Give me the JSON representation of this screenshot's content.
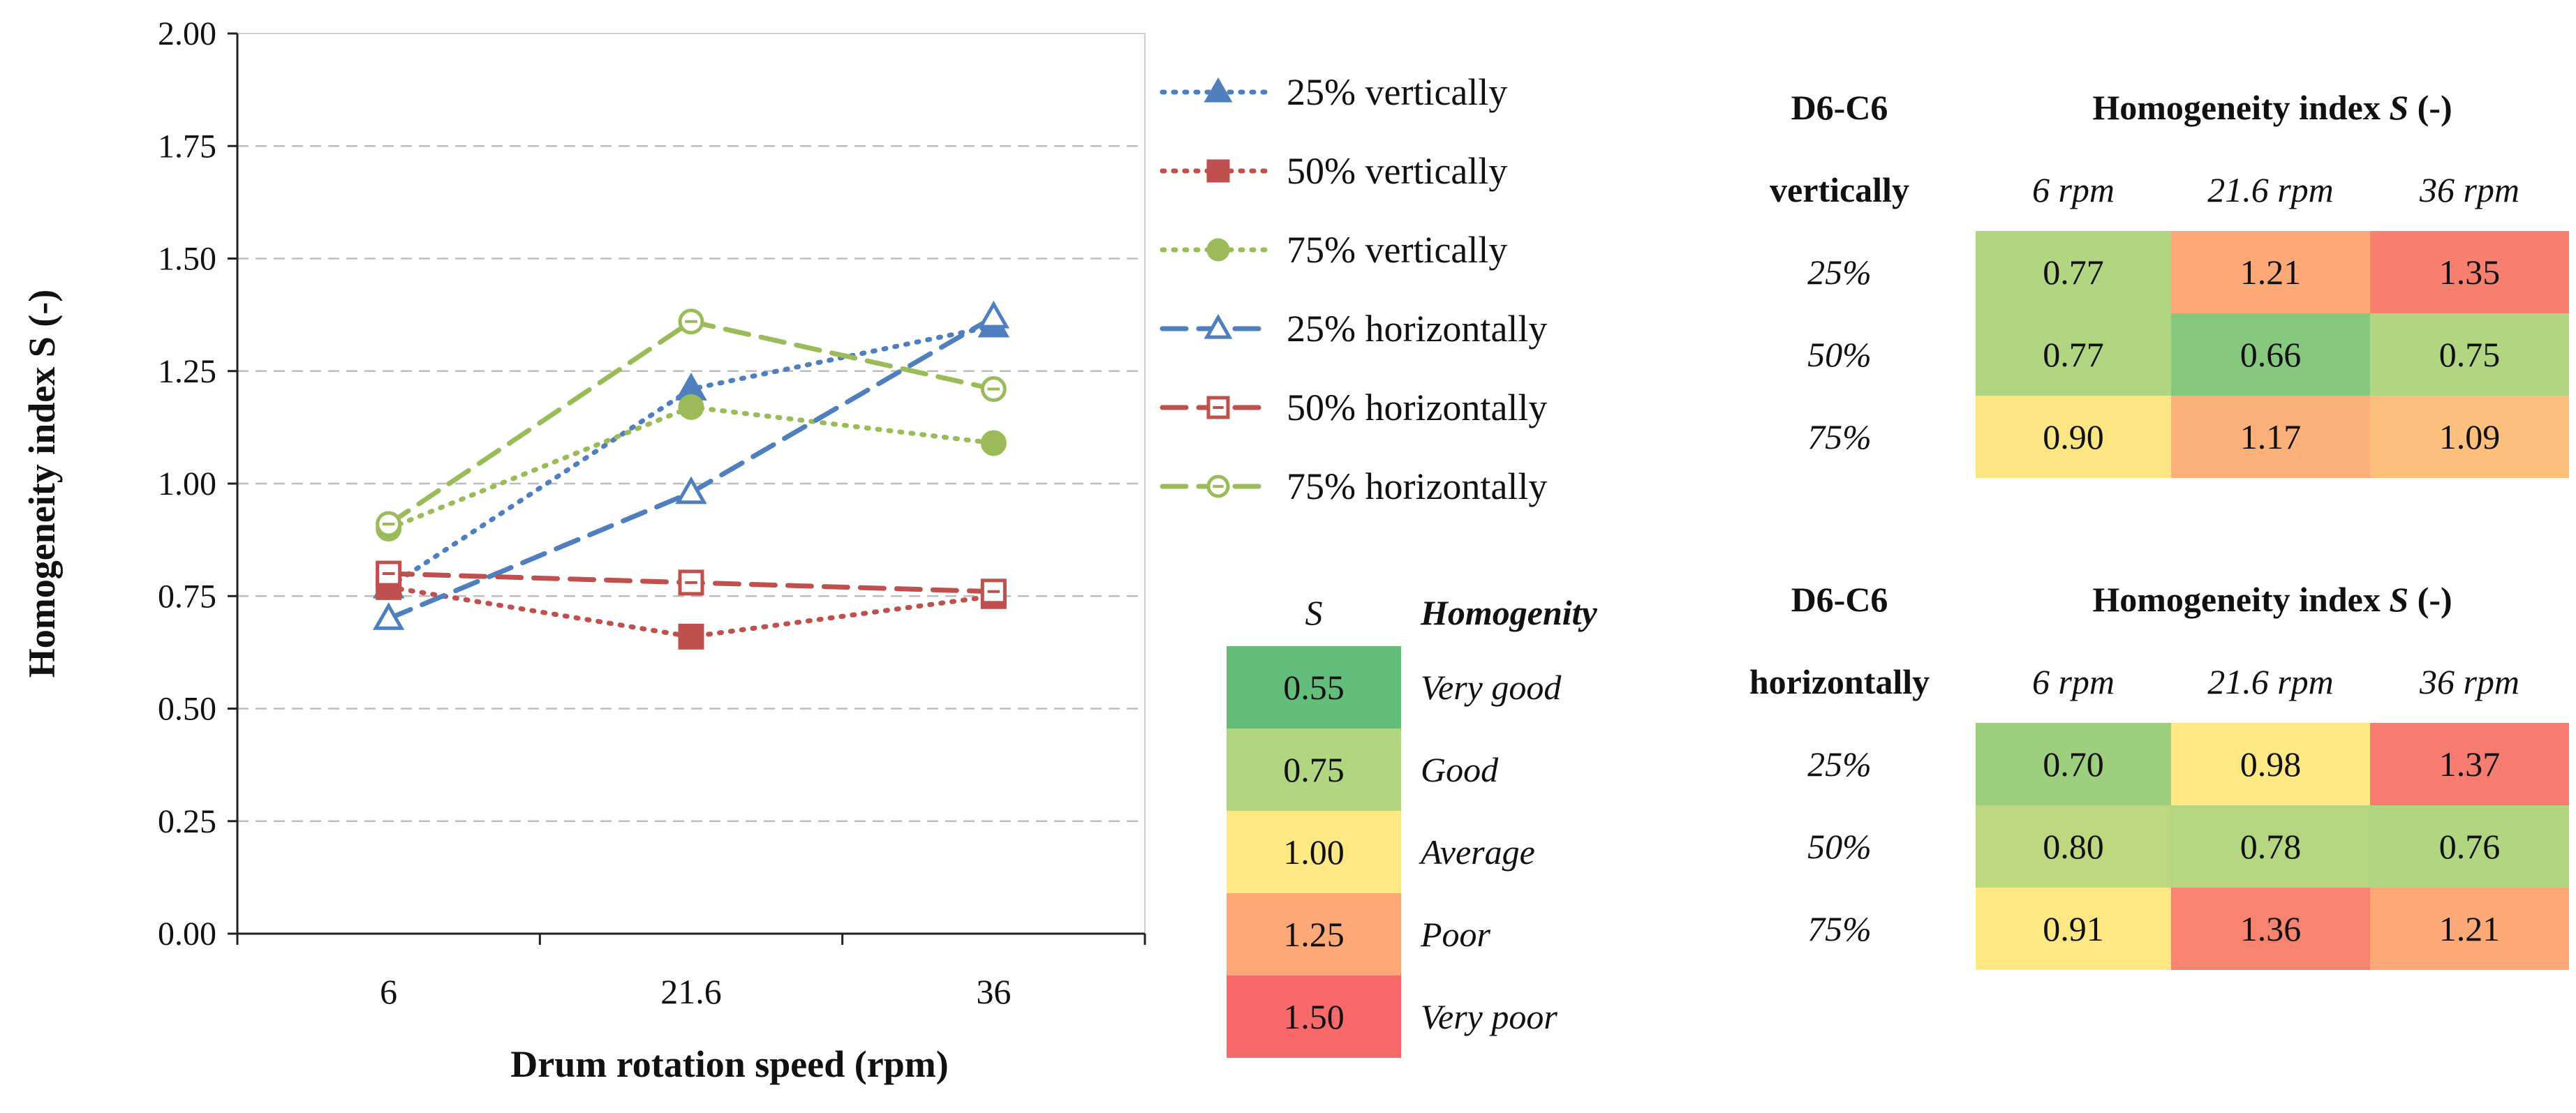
{
  "chart_data": {
    "type": "line",
    "title": "",
    "xlabel": "Drum rotation speed (rpm)",
    "ylabel": "Homogeneity index S (-)",
    "categories": [
      "6",
      "21.6",
      "36"
    ],
    "ylim": [
      0,
      2
    ],
    "yticks": [
      "0.00",
      "0.25",
      "0.50",
      "0.75",
      "1.00",
      "1.25",
      "1.50",
      "1.75",
      "2.00"
    ],
    "grid": true,
    "legend_position": "right",
    "series": [
      {
        "name": "25% vertically",
        "values": [
          0.77,
          1.21,
          1.35
        ],
        "color": "#4f7fbd",
        "dash": "dotted",
        "marker": "triangle",
        "filled": true
      },
      {
        "name": "50% vertically",
        "values": [
          0.77,
          0.66,
          0.75
        ],
        "color": "#c0504d",
        "dash": "dotted",
        "marker": "square",
        "filled": true
      },
      {
        "name": "75% vertically",
        "values": [
          0.9,
          1.17,
          1.09
        ],
        "color": "#9bbb59",
        "dash": "dotted",
        "marker": "circle",
        "filled": true
      },
      {
        "name": "25% horizontally",
        "values": [
          0.7,
          0.98,
          1.37
        ],
        "color": "#4f7fbd",
        "dash": "dashed",
        "marker": "triangle",
        "filled": false
      },
      {
        "name": "50% horizontally",
        "values": [
          0.8,
          0.78,
          0.76
        ],
        "color": "#c0504d",
        "dash": "dashed",
        "marker": "square",
        "filled": false
      },
      {
        "name": "75% horizontally",
        "values": [
          0.91,
          1.36,
          1.21
        ],
        "color": "#9bbb59",
        "dash": "dashed",
        "marker": "circle",
        "filled": false
      }
    ]
  },
  "scale_table": {
    "col_s": "S",
    "col_homogeneity": "Homogenity",
    "rows": [
      {
        "value": "0.55",
        "label": "Very good",
        "color": "#63be7b"
      },
      {
        "value": "0.75",
        "label": "Good",
        "color": "#b1d580"
      },
      {
        "value": "1.00",
        "label": "Average",
        "color": "#ffe984"
      },
      {
        "value": "1.25",
        "label": "Poor",
        "color": "#fca977"
      },
      {
        "value": "1.50",
        "label": "Very poor",
        "color": "#f8696b"
      }
    ]
  },
  "table_vertical": {
    "sample": "D6-C6",
    "orientation": "vertically",
    "header": "Homogeneity index S (-)",
    "header_pre": "Homogeneity index ",
    "header_s": "S",
    "header_post": " (-)",
    "speeds": [
      "6 rpm",
      "21.6 rpm",
      "36 rpm"
    ],
    "rows": [
      {
        "label": "25%",
        "values": [
          "0.77",
          "1.21",
          "1.35"
        ],
        "colors": [
          "#b1d580",
          "#fca977",
          "#f9806f"
        ]
      },
      {
        "label": "50%",
        "values": [
          "0.77",
          "0.66",
          "0.75"
        ],
        "colors": [
          "#b1d580",
          "#86c97e",
          "#b1d580"
        ]
      },
      {
        "label": "75%",
        "values": [
          "0.90",
          "1.17",
          "1.09"
        ],
        "colors": [
          "#fbe683",
          "#fcb079",
          "#fdc07c"
        ]
      }
    ]
  },
  "table_horizontal": {
    "sample": "D6-C6",
    "orientation": "horizontally",
    "header": "Homogeneity index S (-)",
    "header_pre": "Homogeneity index ",
    "header_s": "S",
    "header_post": " (-)",
    "speeds": [
      "6 rpm",
      "21.6 rpm",
      "36 rpm"
    ],
    "rows": [
      {
        "label": "25%",
        "values": [
          "0.70",
          "0.98",
          "1.37"
        ],
        "colors": [
          "#9dcf7e",
          "#ffe984",
          "#f87c6f"
        ]
      },
      {
        "label": "50%",
        "values": [
          "0.80",
          "0.78",
          "0.76"
        ],
        "colors": [
          "#bdd881",
          "#b4d680",
          "#b1d580"
        ]
      },
      {
        "label": "75%",
        "values": [
          "0.91",
          "1.36",
          "1.21"
        ],
        "colors": [
          "#fde883",
          "#f8836f",
          "#fca977"
        ]
      }
    ]
  }
}
